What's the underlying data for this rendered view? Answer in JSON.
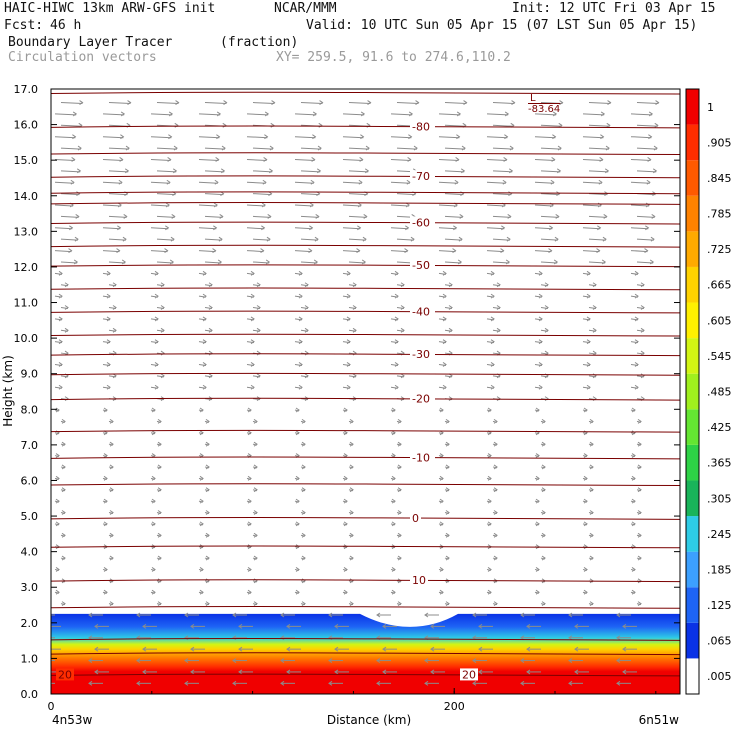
{
  "header": {
    "model": "HAIC-HIWC 13km ARW-GFS init",
    "org": "NCAR/MMM",
    "init": "Init: 12 UTC Fri 03 Apr 15",
    "fcst_label": "Fcst:",
    "fcst_value": "46 h",
    "valid": "Valid: 10 UTC Sun 05 Apr 15 (07 LST Sun 05 Apr 15)",
    "field": "Boundary Layer Tracer",
    "units": "(fraction)",
    "vectors": "Circulation vectors",
    "xy": "XY= 259.5, 91.6 to 274.6,110.2"
  },
  "colors": {
    "contour": "#7a0000",
    "vector": "#8c8c8c"
  },
  "chart_data": {
    "type": "heatmap",
    "title": "Boundary Layer Tracer",
    "ylabel": "Height (km)",
    "xlabel": "Distance (km)",
    "ylim": [
      0,
      17
    ],
    "y_ticks": [
      "0.0",
      "1.0",
      "2.0",
      "3.0",
      "4.0",
      "5.0",
      "6.0",
      "7.0",
      "8.0",
      "9.0",
      "10.0",
      "11.0",
      "12.0",
      "13.0",
      "14.0",
      "15.0",
      "16.0",
      "17.0"
    ],
    "x_ticks": [
      {
        "label": "0",
        "km": 0
      },
      {
        "label": "200",
        "km": 200
      }
    ],
    "x_end_km": 312,
    "endpoints": {
      "left": "4n53w",
      "right": "6n51w"
    },
    "colorbar": {
      "labels": [
        ".005",
        ".065",
        ".125",
        ".185",
        ".245",
        ".305",
        ".365",
        ".425",
        ".485",
        ".545",
        ".605",
        ".665",
        ".725",
        ".785",
        ".845",
        ".905",
        "1"
      ],
      "colors": [
        "#ffffff",
        "#0a32e6",
        "#1e64f5",
        "#3ca0ff",
        "#2ecce6",
        "#19b45a",
        "#2ed246",
        "#64e632",
        "#a0f01e",
        "#d2f514",
        "#fff000",
        "#ffd200",
        "#ffaa00",
        "#ff8200",
        "#ff5a00",
        "#ff2d00",
        "#f00000"
      ]
    },
    "temperature_contours": [
      {
        "value": -80,
        "height_km": 15.95,
        "label": "-80"
      },
      {
        "value": -70,
        "height_km": 14.55,
        "label": "-70"
      },
      {
        "value": -60,
        "height_km": 13.25,
        "label": "-60"
      },
      {
        "value": -50,
        "height_km": 12.05,
        "label": "-50"
      },
      {
        "value": -40,
        "height_km": 10.75,
        "label": "-40"
      },
      {
        "value": -30,
        "height_km": 9.55,
        "label": "-30"
      },
      {
        "value": -20,
        "height_km": 8.3,
        "label": "-20"
      },
      {
        "value": -10,
        "height_km": 6.65,
        "label": "-10"
      },
      {
        "value": 0,
        "height_km": 4.95,
        "label": "0"
      },
      {
        "value": 10,
        "height_km": 3.2,
        "label": "10"
      },
      {
        "value": 20,
        "height_km": 0.55,
        "label": "20"
      }
    ],
    "extra_contours_km": [
      16.9,
      15.2,
      14.1,
      13.8,
      12.6,
      11.4,
      10.1,
      9.0,
      7.4,
      5.9,
      4.15,
      2.45,
      1.55,
      1.15
    ],
    "low_marker": {
      "label": "L",
      "value": "-83.64"
    },
    "tracer_top_km": 2.25
  }
}
